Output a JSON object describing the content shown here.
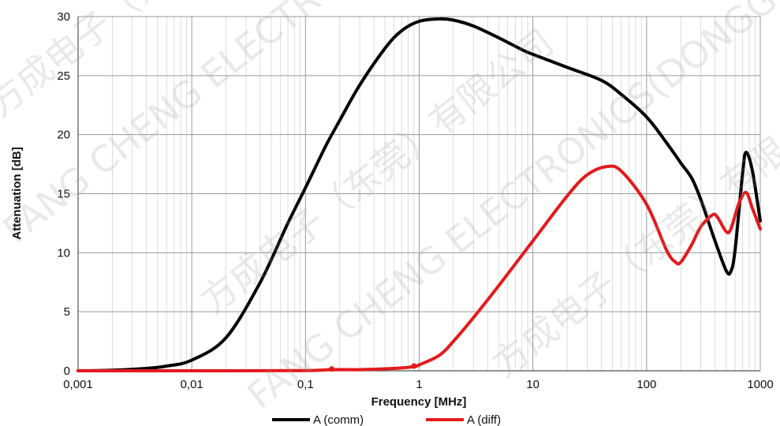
{
  "watermark": {
    "latin": "FANG CHENG ELECTRONICS(DONGGUAN)",
    "chinese": "方成电子（东莞）有限公司"
  },
  "chart_data": {
    "type": "line",
    "xlabel": "Frequency [MHz]",
    "ylabel": "Attenuation [dB]",
    "xscale": "log",
    "xlim": [
      0.001,
      1000
    ],
    "ylim": [
      0,
      30
    ],
    "x_ticks": [
      "0,001",
      "0,01",
      "0,1",
      "1",
      "10",
      "100",
      "1000"
    ],
    "y_ticks": [
      "0",
      "5",
      "10",
      "15",
      "20",
      "25",
      "30"
    ],
    "grid": true,
    "legend": "bottom",
    "series": [
      {
        "name": "A (comm)",
        "color": "#000000",
        "x": [
          0.001,
          0.002,
          0.004,
          0.006,
          0.01,
          0.02,
          0.04,
          0.07,
          0.1,
          0.15,
          0.2,
          0.3,
          0.5,
          0.7,
          1,
          1.5,
          2,
          3,
          5,
          8,
          10,
          20,
          40,
          60,
          100,
          150,
          200,
          250,
          300,
          400,
          500,
          550,
          600,
          700,
          750,
          850,
          1000
        ],
        "y": [
          0,
          0.05,
          0.2,
          0.4,
          0.9,
          2.8,
          7.5,
          12.5,
          15.5,
          19,
          21.2,
          24.2,
          27.3,
          28.8,
          29.6,
          29.8,
          29.7,
          29.2,
          28.2,
          27.2,
          26.8,
          25.7,
          24.6,
          23.4,
          21.5,
          19.3,
          17.6,
          16.3,
          14.5,
          11,
          8.5,
          8.4,
          10.2,
          16.8,
          18.5,
          17,
          12.7
        ]
      },
      {
        "name": "A (diff)",
        "color": "#e41a1c",
        "x": [
          0.001,
          0.01,
          0.1,
          0.17,
          0.3,
          0.6,
          0.9,
          1,
          1.5,
          2,
          3,
          5,
          10,
          20,
          30,
          45,
          60,
          100,
          150,
          180,
          200,
          250,
          300,
          380,
          420,
          500,
          550,
          650,
          750,
          850,
          1000
        ],
        "y": [
          0,
          0,
          0.02,
          0.1,
          0.1,
          0.2,
          0.35,
          0.5,
          1.3,
          2.5,
          4.5,
          7.2,
          11,
          14.8,
          16.6,
          17.3,
          16.9,
          14.1,
          10.2,
          9.2,
          9.2,
          10.7,
          12.2,
          13.2,
          13,
          11.8,
          12,
          14.2,
          15.1,
          13.8,
          12
        ]
      }
    ],
    "markers": [
      {
        "x": 0.17,
        "y": 0.15,
        "series": "A (diff)"
      },
      {
        "x": 0.9,
        "y": 0.4,
        "series": "A (diff)"
      }
    ]
  }
}
